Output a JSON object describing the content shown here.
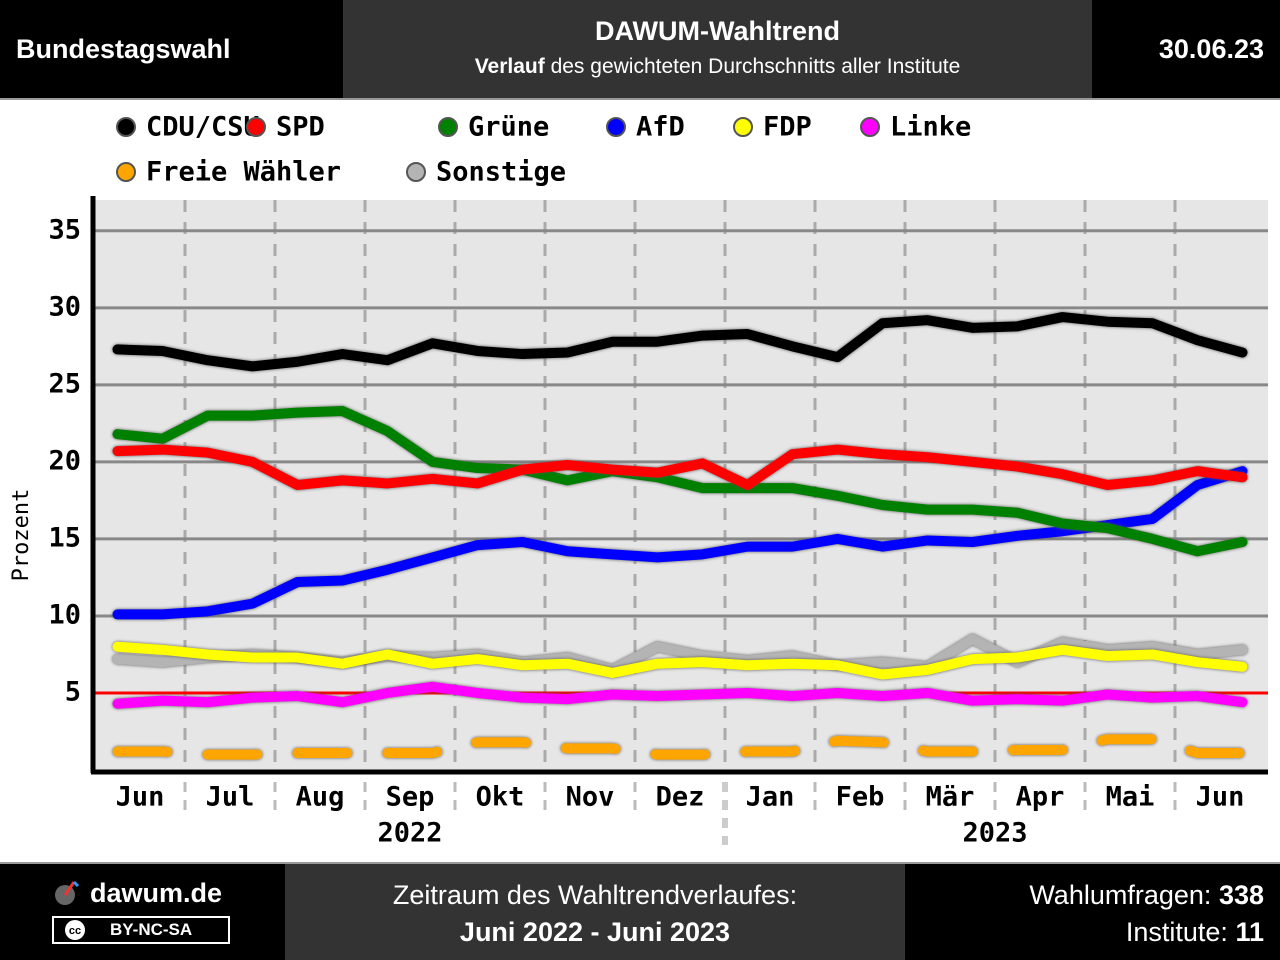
{
  "header": {
    "left": "Bundestagswahl",
    "title": "DAWUM-Wahltrend",
    "subtitle_bold": "Verlauf",
    "subtitle": "des gewichteten Durchschnitts aller Institute",
    "date": "30.06.23"
  },
  "chart_data": {
    "type": "line",
    "y_label": "Prozent",
    "categories": [
      "Jun",
      null,
      "Jul",
      null,
      "Aug",
      null,
      "Sep",
      null,
      "Okt",
      null,
      "Nov",
      null,
      "Dez",
      null,
      "Jan",
      null,
      "Feb",
      null,
      "Mär",
      null,
      "Apr",
      null,
      "Mai",
      null,
      "Jun",
      null
    ],
    "years": [
      "2022",
      "2023"
    ],
    "ylim": [
      0,
      37
    ],
    "yticks": [
      5,
      10,
      15,
      20,
      25,
      30,
      35
    ],
    "grid": true,
    "reference_line": {
      "value": 5,
      "color": "#ff0000"
    },
    "series": [
      {
        "name": "CDU/CSU",
        "color": "#000000",
        "values": [
          27.3,
          27.2,
          26.6,
          26.2,
          26.5,
          27.0,
          26.6,
          27.7,
          27.2,
          27.0,
          27.1,
          27.8,
          27.8,
          28.2,
          28.3,
          27.5,
          26.8,
          29.0,
          29.2,
          28.7,
          28.8,
          29.4,
          29.1,
          29.0,
          27.9,
          27.1
        ]
      },
      {
        "name": "SPD",
        "color": "#ff0000",
        "values": [
          20.7,
          20.8,
          20.6,
          20.0,
          18.5,
          18.8,
          18.6,
          18.9,
          18.6,
          19.5,
          19.8,
          19.5,
          19.3,
          19.9,
          18.5,
          20.5,
          20.8,
          20.5,
          20.3,
          20.0,
          19.7,
          19.2,
          18.5,
          18.8,
          19.4,
          19.0
        ]
      },
      {
        "name": "Grüne",
        "color": "#008000",
        "values": [
          21.8,
          21.5,
          23.0,
          23.0,
          23.2,
          23.3,
          22.0,
          20.0,
          19.6,
          19.5,
          18.8,
          19.4,
          19.0,
          18.3,
          18.3,
          18.3,
          17.8,
          17.2,
          16.9,
          16.9,
          16.7,
          16.0,
          15.7,
          15.0,
          14.2,
          14.8
        ]
      },
      {
        "name": "AfD",
        "color": "#0000ff",
        "values": [
          10.1,
          10.1,
          10.3,
          10.8,
          12.2,
          12.3,
          13.0,
          13.8,
          14.6,
          14.8,
          14.2,
          14.0,
          13.8,
          14.0,
          14.5,
          14.5,
          15.0,
          14.5,
          14.9,
          14.8,
          15.2,
          15.5,
          15.9,
          16.3,
          18.5,
          19.4
        ]
      },
      {
        "name": "FDP",
        "color": "#ffff00",
        "values": [
          8.0,
          7.8,
          7.5,
          7.3,
          7.3,
          6.9,
          7.5,
          6.9,
          7.2,
          6.8,
          6.9,
          6.3,
          6.9,
          7.0,
          6.8,
          6.9,
          6.8,
          6.2,
          6.5,
          7.2,
          7.3,
          7.8,
          7.4,
          7.5,
          7.0,
          6.7
        ]
      },
      {
        "name": "Linke",
        "color": "#ff00ff",
        "values": [
          4.3,
          4.5,
          4.4,
          4.7,
          4.8,
          4.4,
          5.0,
          5.4,
          5.0,
          4.7,
          4.6,
          4.9,
          4.8,
          4.9,
          5.0,
          4.8,
          5.0,
          4.8,
          5.0,
          4.5,
          4.6,
          4.5,
          4.9,
          4.7,
          4.8,
          4.4
        ]
      },
      {
        "name": "Freie Wähler",
        "color": "#ffa500",
        "dashed": true,
        "values": [
          1.2,
          1.2,
          1.0,
          1.0,
          1.1,
          1.1,
          1.1,
          1.1,
          1.8,
          1.8,
          1.4,
          1.4,
          1.0,
          1.0,
          1.2,
          1.2,
          1.9,
          1.8,
          1.2,
          1.2,
          1.3,
          1.3,
          2.0,
          2.0,
          1.1,
          1.1
        ]
      },
      {
        "name": "Sonstige",
        "color": "#b4b4b4",
        "values": [
          7.2,
          7.0,
          7.3,
          7.5,
          7.3,
          7.0,
          7.4,
          7.3,
          7.5,
          7.0,
          7.3,
          6.5,
          8.0,
          7.4,
          7.1,
          7.4,
          6.8,
          7.0,
          6.7,
          8.5,
          7.0,
          8.3,
          7.8,
          8.0,
          7.5,
          7.8
        ]
      }
    ]
  },
  "footer": {
    "site": "dawum.de",
    "license": "BY-NC-SA",
    "period_label": "Zeitraum des Wahltrendverlaufes:",
    "period": "Juni 2022 - Juni 2023",
    "polls_label": "Wahlumfragen:",
    "polls": "338",
    "institutes_label": "Institute:",
    "institutes": "11"
  }
}
